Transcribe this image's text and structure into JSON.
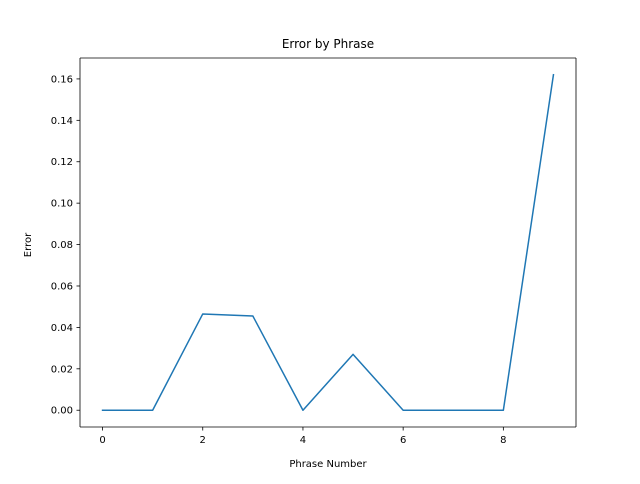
{
  "chart_data": {
    "type": "line",
    "title": "Error by Phrase",
    "xlabel": "Phrase Number",
    "ylabel": "Error",
    "x": [
      0,
      1,
      2,
      3,
      4,
      5,
      6,
      7,
      8,
      9
    ],
    "series": [
      {
        "values": [
          0.0,
          0.0,
          0.0465,
          0.0455,
          0.0,
          0.027,
          0.0,
          0.0,
          0.0,
          0.162
        ]
      }
    ],
    "xlim": [
      -0.45,
      9.45
    ],
    "ylim": [
      -0.0081,
      0.1701
    ],
    "xticks": [
      0,
      2,
      4,
      6,
      8
    ],
    "xtick_labels": [
      "0",
      "2",
      "4",
      "6",
      "8"
    ],
    "yticks": [
      0.0,
      0.02,
      0.04,
      0.06,
      0.08,
      0.1,
      0.12,
      0.14,
      0.16
    ],
    "ytick_labels": [
      "0.00",
      "0.02",
      "0.04",
      "0.06",
      "0.08",
      "0.10",
      "0.12",
      "0.14",
      "0.16"
    ],
    "grid": false,
    "line_color": "#1f77b4"
  }
}
